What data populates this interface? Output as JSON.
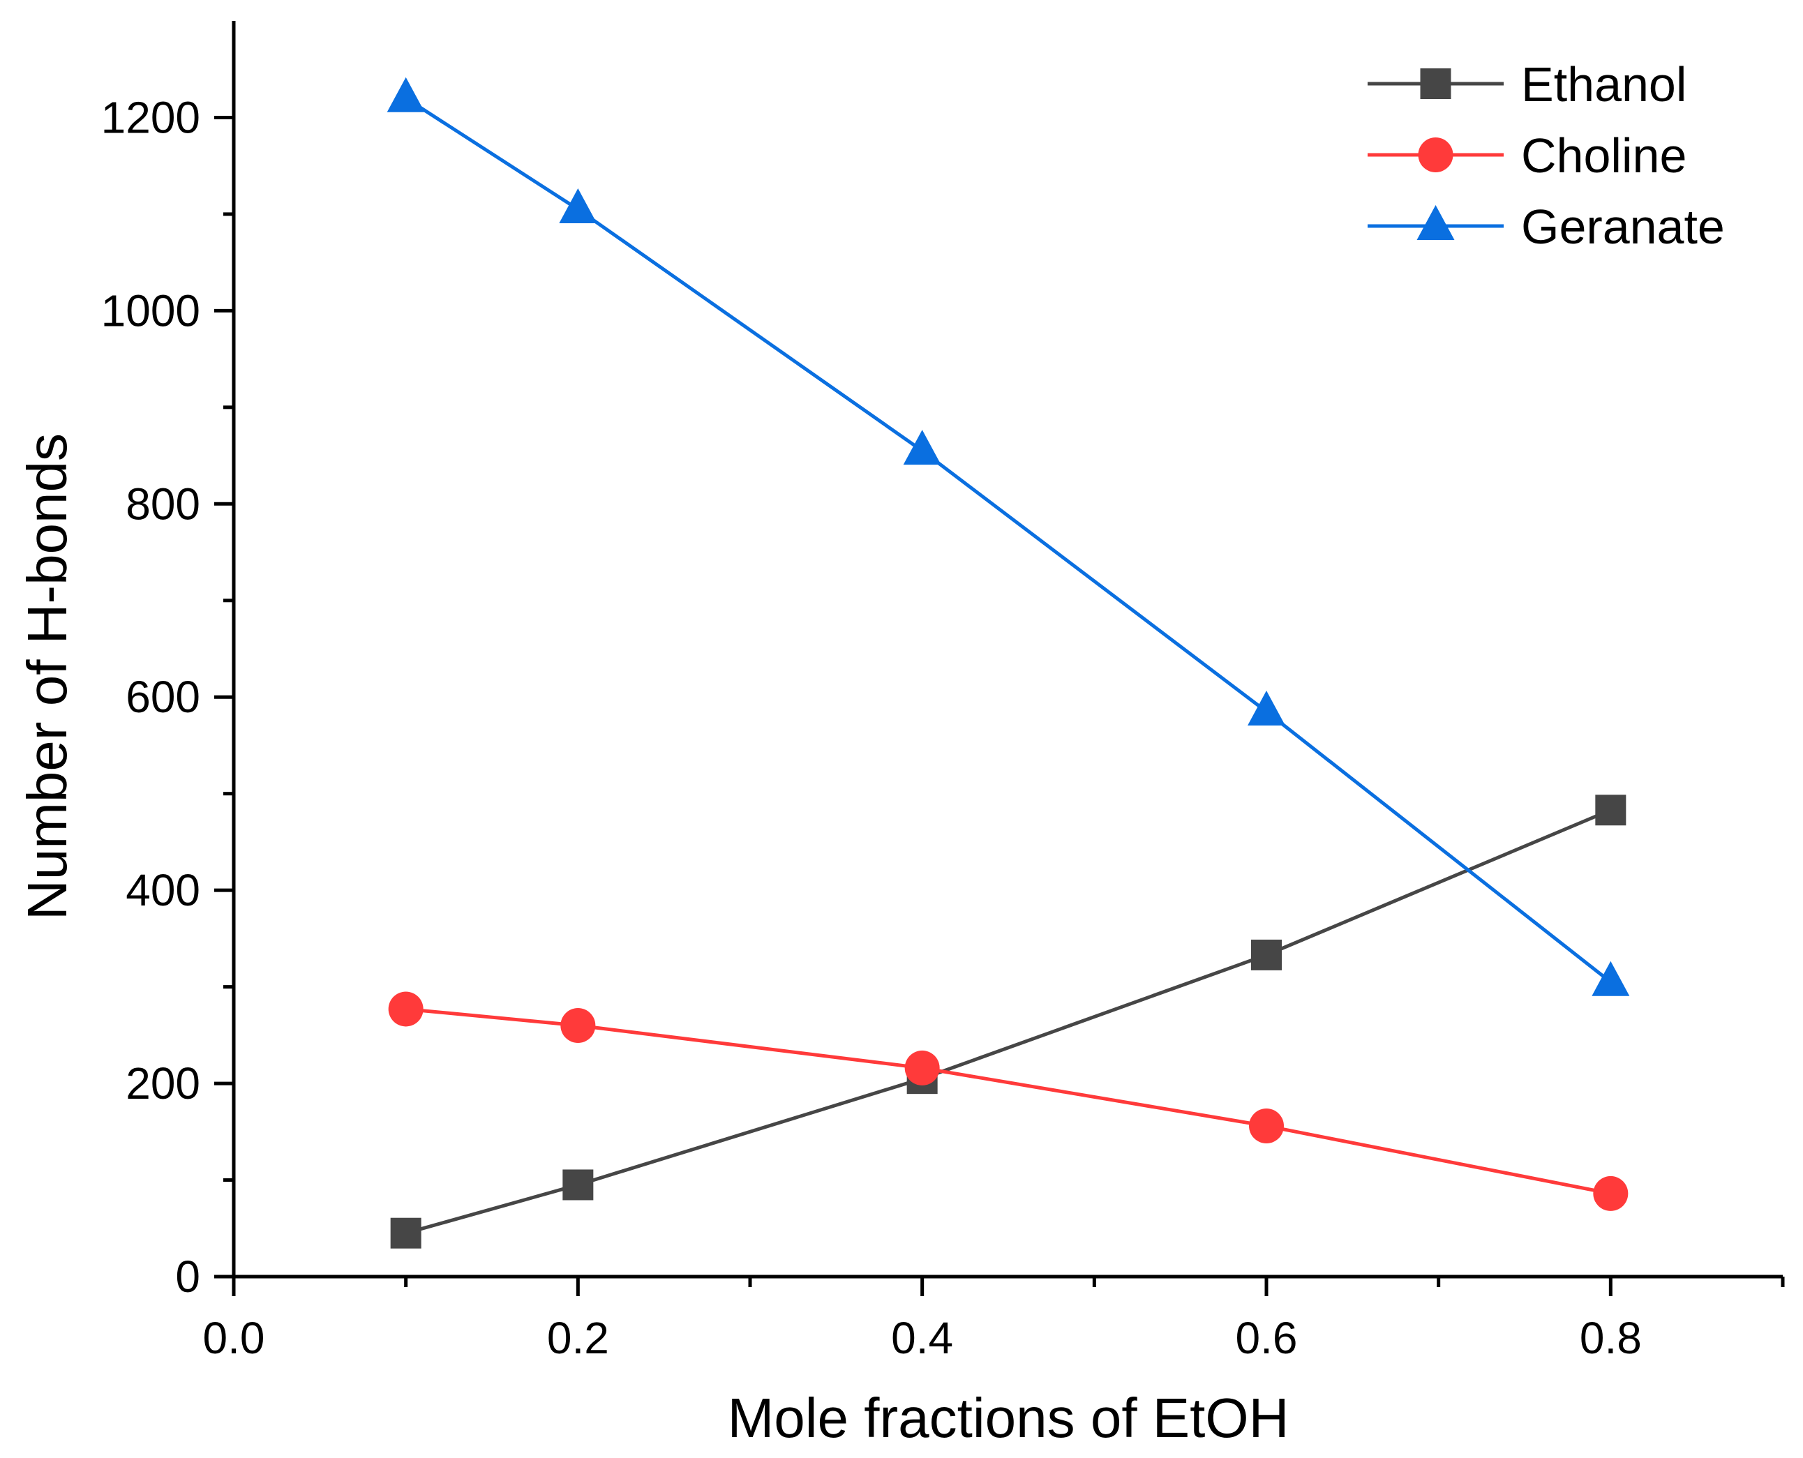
{
  "chart_data": {
    "type": "line",
    "title": "",
    "xlabel": "Mole fractions of EtOH",
    "ylabel": "Number of H-bonds",
    "xlim": [
      0.0,
      0.9
    ],
    "ylim": [
      0,
      1300
    ],
    "x_ticks": [
      0.0,
      0.2,
      0.4,
      0.6,
      0.8
    ],
    "x_tick_labels": [
      "0.0",
      "0.2",
      "0.4",
      "0.6",
      "0.8"
    ],
    "y_ticks": [
      0,
      200,
      400,
      600,
      800,
      1000,
      1200
    ],
    "y_tick_labels": [
      "0",
      "200",
      "400",
      "600",
      "800",
      "1000",
      "1200"
    ],
    "grid": false,
    "legend_position": "top-right",
    "series": [
      {
        "name": "Ethanol",
        "color": "#464646",
        "marker": "square",
        "x": [
          0.1,
          0.2,
          0.4,
          0.6,
          0.8
        ],
        "y": [
          45,
          95,
          205,
          333,
          483
        ]
      },
      {
        "name": "Choline",
        "color": "#ff3a3a",
        "marker": "circle",
        "x": [
          0.1,
          0.2,
          0.4,
          0.6,
          0.8
        ],
        "y": [
          277,
          260,
          216,
          156,
          86
        ]
      },
      {
        "name": "Geranate",
        "color": "#0a6fe0",
        "marker": "triangle",
        "x": [
          0.1,
          0.2,
          0.4,
          0.6,
          0.8
        ],
        "y": [
          1220,
          1105,
          855,
          585,
          305
        ]
      }
    ]
  }
}
